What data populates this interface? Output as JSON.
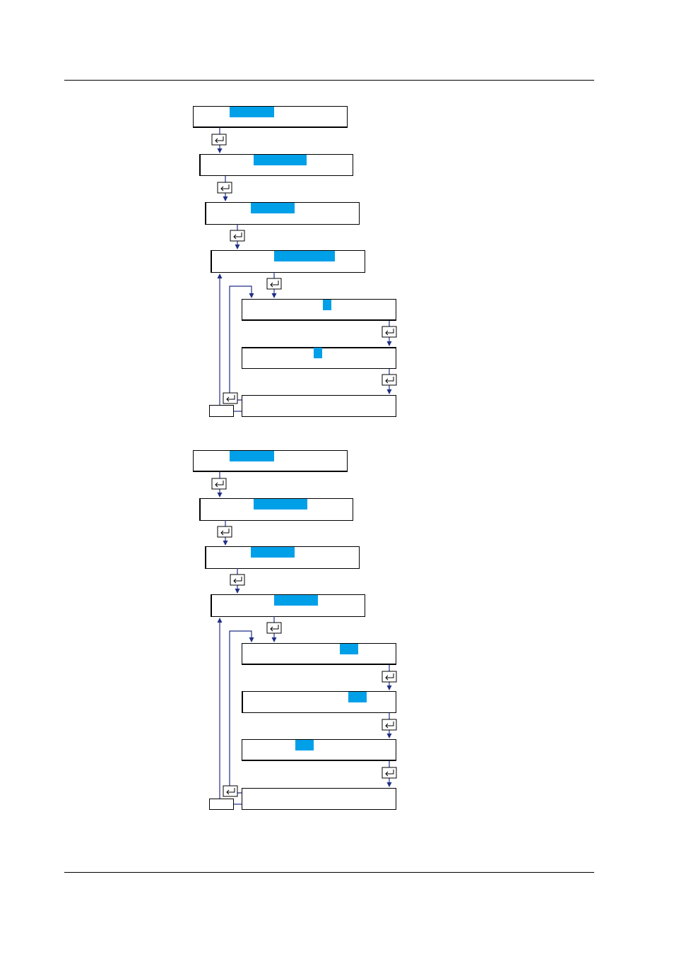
{
  "colors": {
    "highlight": "#00a0e9",
    "flow_line": "#1f2f86",
    "frame": "#000000"
  },
  "key_icon": "enter-key-icon",
  "upper_flow": {
    "screens": [
      "",
      "",
      "",
      "",
      "",
      "",
      ""
    ],
    "escape_box": ""
  },
  "lower_flow": {
    "screens": [
      "",
      "",
      "",
      "",
      "",
      "",
      "",
      ""
    ],
    "escape_box": ""
  }
}
